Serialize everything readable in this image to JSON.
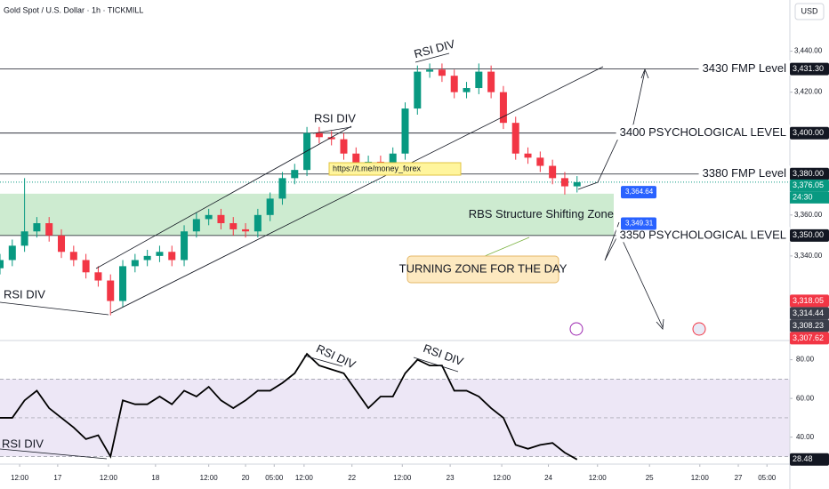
{
  "header": {
    "title": "Gold Spot / U.S. Dollar · 1h · TICKMILL",
    "currency": "USD"
  },
  "chart_data": [
    {
      "type": "candlestick",
      "x": [
        0,
        3,
        6,
        9,
        12,
        15,
        18,
        21,
        24,
        27,
        30,
        33,
        36,
        39,
        42,
        45,
        48,
        51,
        54,
        57,
        60,
        63,
        66,
        69,
        72,
        75,
        78,
        81,
        84,
        87,
        90,
        93,
        96,
        99,
        102,
        105,
        108,
        111,
        114,
        117,
        120,
        123,
        126,
        129,
        132,
        135,
        138,
        141
      ],
      "open": [
        3334,
        3338,
        3345,
        3352,
        3356,
        3350,
        3342,
        3338,
        3332,
        3328,
        3318,
        3335,
        3338,
        3340,
        3342,
        3338,
        3352,
        3358,
        3360,
        3356,
        3353,
        3352,
        3360,
        3368,
        3378,
        3382,
        3400,
        3398,
        3397,
        3390,
        3385,
        3386,
        3384,
        3390,
        3412,
        3430,
        3431,
        3428,
        3420,
        3422,
        3430,
        3420,
        3405,
        3390,
        3388,
        3384,
        3378,
        3374
      ],
      "high": [
        3341,
        3348,
        3378,
        3359,
        3359,
        3353,
        3345,
        3341,
        3335,
        3331,
        3338,
        3341,
        3343,
        3345,
        3345,
        3355,
        3361,
        3363,
        3363,
        3359,
        3356,
        3363,
        3371,
        3381,
        3385,
        3403,
        3403,
        3401,
        3400,
        3393,
        3389,
        3389,
        3393,
        3415,
        3433,
        3434,
        3434,
        3431,
        3425,
        3434,
        3433,
        3423,
        3408,
        3393,
        3391,
        3387,
        3381,
        3379
      ],
      "low": [
        3331,
        3335,
        3342,
        3349,
        3347,
        3339,
        3335,
        3329,
        3325,
        3311,
        3315,
        3332,
        3335,
        3337,
        3335,
        3335,
        3349,
        3355,
        3353,
        3350,
        3349,
        3349,
        3357,
        3365,
        3375,
        3379,
        3395,
        3394,
        3387,
        3382,
        3382,
        3381,
        3381,
        3387,
        3409,
        3427,
        3425,
        3417,
        3417,
        3419,
        3417,
        3402,
        3387,
        3385,
        3381,
        3375,
        3370,
        3371
      ],
      "close": [
        3338,
        3345,
        3352,
        3356,
        3350,
        3342,
        3338,
        3332,
        3328,
        3318,
        3335,
        3338,
        3340,
        3342,
        3338,
        3352,
        3358,
        3360,
        3356,
        3353,
        3352,
        3360,
        3368,
        3378,
        3382,
        3400,
        3398,
        3397,
        3390,
        3385,
        3386,
        3384,
        3390,
        3412,
        3430,
        3431,
        3428,
        3420,
        3422,
        3430,
        3420,
        3405,
        3390,
        3388,
        3384,
        3378,
        3374,
        3376.05
      ],
      "up_color": "#089981",
      "down_color": "#f23645",
      "xlim": [
        0,
        193
      ],
      "ylim": [
        3300,
        3465
      ],
      "yticks": [
        {
          "value": 3440,
          "label": "3,440.00"
        },
        {
          "value": 3420,
          "label": "3,420.00"
        },
        {
          "value": 3400,
          "label": "3,400.00"
        },
        {
          "value": 3380,
          "label": "3,380.00"
        },
        {
          "value": 3360,
          "label": "3,360.00"
        },
        {
          "value": 3340,
          "label": "3,340.00"
        }
      ],
      "xticks": [
        {
          "value": 4.8,
          "label": "12:00"
        },
        {
          "value": 14.1,
          "label": "17"
        },
        {
          "value": 26.5,
          "label": "12:00"
        },
        {
          "value": 38,
          "label": "18"
        },
        {
          "value": 51,
          "label": "12:00"
        },
        {
          "value": 60,
          "label": "20"
        },
        {
          "value": 67,
          "label": "05:00"
        },
        {
          "value": 74.3,
          "label": "12:00"
        },
        {
          "value": 86,
          "label": "22"
        },
        {
          "value": 98.3,
          "label": "12:00"
        },
        {
          "value": 110,
          "label": "23"
        },
        {
          "value": 122.6,
          "label": "12:00"
        },
        {
          "value": 134,
          "label": "24"
        },
        {
          "value": 146,
          "label": "12:00"
        },
        {
          "value": 158.7,
          "label": "25"
        },
        {
          "value": 171,
          "label": "12:00"
        },
        {
          "value": 180.4,
          "label": "27"
        },
        {
          "value": 187.4,
          "label": "05:00"
        }
      ],
      "levels": [
        {
          "value": 3431.3,
          "label": "3430 FMP Level",
          "price_label": "3,431.30"
        },
        {
          "value": 3400,
          "label": "3400 PSYCHOLOGICAL LEVEL",
          "price_label": "3,400.00"
        },
        {
          "value": 3380,
          "label": "3380 FMP Level",
          "price_label": "3,380.00"
        },
        {
          "value": 3350,
          "label": "3350 PSYCHOLOGICAL LEVEL",
          "price_label": "3,350.00"
        }
      ],
      "zone": {
        "from": 3350,
        "to": 3370.4,
        "label": "RBS Structure Shifting Zone",
        "color": "#cdebd0"
      },
      "last_price": {
        "value": 3376.05,
        "label": "3,376.05",
        "countdown": "24:30",
        "color": "#089981"
      },
      "flags": [
        {
          "value": 3364.64,
          "label": "3,364.64"
        },
        {
          "value": 3349.31,
          "label": "3,349.31"
        }
      ],
      "price_tags": [
        {
          "value": 3318.05,
          "label": "3,318.05",
          "color": "#f23645"
        },
        {
          "value": 3314.44,
          "label": "3,314.44",
          "color": "#3a3e4a"
        },
        {
          "value": 3308.23,
          "label": "3,308.23",
          "color": "#3a3e4a"
        },
        {
          "value": 3307.62,
          "label": "3,307.62",
          "color": "#f23645"
        }
      ],
      "annotations": [
        "https://t.me/money_forex",
        "TURNING ZONE FOR THE DAY",
        "RSI DIV",
        "RSI DIV",
        "RSI DIV"
      ]
    },
    {
      "type": "line",
      "x": [
        0,
        3,
        6,
        9,
        12,
        15,
        18,
        21,
        24,
        27,
        30,
        33,
        36,
        39,
        42,
        45,
        48,
        51,
        54,
        57,
        60,
        63,
        66,
        69,
        72,
        75,
        78,
        81,
        84,
        87,
        90,
        93,
        96,
        99,
        102,
        105,
        108,
        111,
        114,
        117,
        120,
        123,
        126,
        129,
        132,
        135,
        138,
        141
      ],
      "values": [
        50,
        50,
        59,
        64,
        55,
        50,
        45,
        39,
        41,
        30,
        59,
        57,
        57,
        61,
        57,
        64,
        61,
        66,
        59,
        55,
        59,
        64,
        64,
        68,
        73,
        83,
        77,
        75,
        73,
        64,
        55,
        61,
        61,
        73,
        80,
        77,
        77,
        64,
        64,
        61,
        55,
        50,
        36,
        34,
        36,
        37,
        32,
        28.48
      ],
      "value_label": "28.48",
      "color": "#000000",
      "band": [
        30,
        70
      ],
      "midline": 50,
      "band_color": "#ede7f6",
      "xlim": [
        0,
        193
      ],
      "ylim": [
        27,
        89
      ],
      "yticks": [
        {
          "value": 80,
          "label": "80.00"
        },
        {
          "value": 60,
          "label": "60.00"
        },
        {
          "value": 40,
          "label": "40.00"
        }
      ],
      "annotations": [
        "RSI DIV",
        "RSI DIV",
        "RSI DIV"
      ]
    }
  ]
}
